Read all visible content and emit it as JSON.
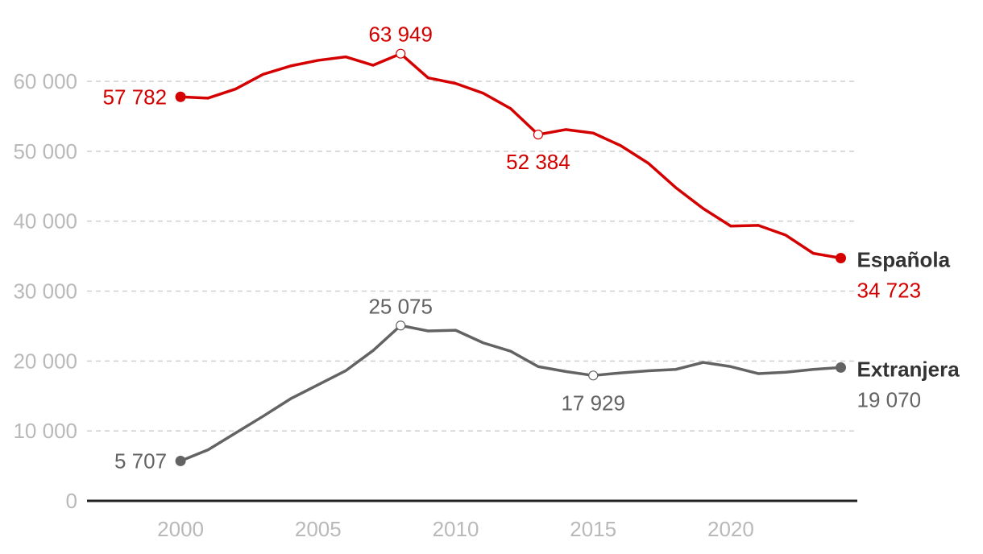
{
  "colors": {
    "espanola": "#d40000",
    "extranjera": "#636363",
    "grid": "#cfcfcf",
    "tick": "#b9b9b9",
    "axis": "#222222",
    "label": "#333333"
  },
  "chart_data": {
    "type": "line",
    "title": "",
    "xlabel": "",
    "ylabel": "",
    "xlim": [
      1996.6,
      2024.6
    ],
    "ylim": [
      0,
      65000
    ],
    "grid": true,
    "legend": "direct labels at line ends",
    "x_ticks": [
      {
        "value": 2000,
        "label": "2000"
      },
      {
        "value": 2005,
        "label": "2005"
      },
      {
        "value": 2010,
        "label": "2010"
      },
      {
        "value": 2015,
        "label": "2015"
      },
      {
        "value": 2020,
        "label": "2020"
      }
    ],
    "y_ticks": [
      {
        "value": 0,
        "label": "0"
      },
      {
        "value": 10000,
        "label": "10 000"
      },
      {
        "value": 20000,
        "label": "20 000"
      },
      {
        "value": 30000,
        "label": "30 000"
      },
      {
        "value": 40000,
        "label": "40 000"
      },
      {
        "value": 50000,
        "label": "50 000"
      },
      {
        "value": 60000,
        "label": "60 000"
      }
    ],
    "x": [
      2000,
      2001,
      2002,
      2003,
      2004,
      2005,
      2006,
      2007,
      2008,
      2009,
      2010,
      2011,
      2012,
      2013,
      2014,
      2015,
      2016,
      2017,
      2018,
      2019,
      2020,
      2021,
      2022,
      2023,
      2024
    ],
    "series": [
      {
        "key": "espanola",
        "name": "Española",
        "values": [
          57782,
          57600,
          58900,
          61000,
          62200,
          63000,
          63500,
          62300,
          63949,
          60500,
          59700,
          58300,
          56100,
          52384,
          53100,
          52600,
          50800,
          48300,
          44800,
          41800,
          39300,
          39400,
          38000,
          35400,
          34723
        ],
        "annotations": [
          {
            "index": 0,
            "label": "57 782",
            "marker": "filled",
            "position": "left"
          },
          {
            "index": 8,
            "label": "63 949",
            "marker": "open",
            "position": "above"
          },
          {
            "index": 13,
            "label": "52 384",
            "marker": "open",
            "position": "below"
          },
          {
            "index": 24,
            "label": "34 723",
            "marker": "filled",
            "position": "end"
          }
        ]
      },
      {
        "key": "extranjera",
        "name": "Extranjera",
        "values": [
          5707,
          7300,
          9700,
          12100,
          14600,
          16600,
          18600,
          21500,
          25075,
          24300,
          24400,
          22600,
          21400,
          19200,
          18500,
          17929,
          18300,
          18600,
          18800,
          19800,
          19200,
          18200,
          18400,
          18800,
          19070
        ],
        "annotations": [
          {
            "index": 0,
            "label": "5 707",
            "marker": "filled",
            "position": "left"
          },
          {
            "index": 8,
            "label": "25 075",
            "marker": "open",
            "position": "above"
          },
          {
            "index": 15,
            "label": "17 929",
            "marker": "open",
            "position": "below"
          },
          {
            "index": 24,
            "label": "19 070",
            "marker": "filled",
            "position": "end"
          }
        ]
      }
    ]
  }
}
